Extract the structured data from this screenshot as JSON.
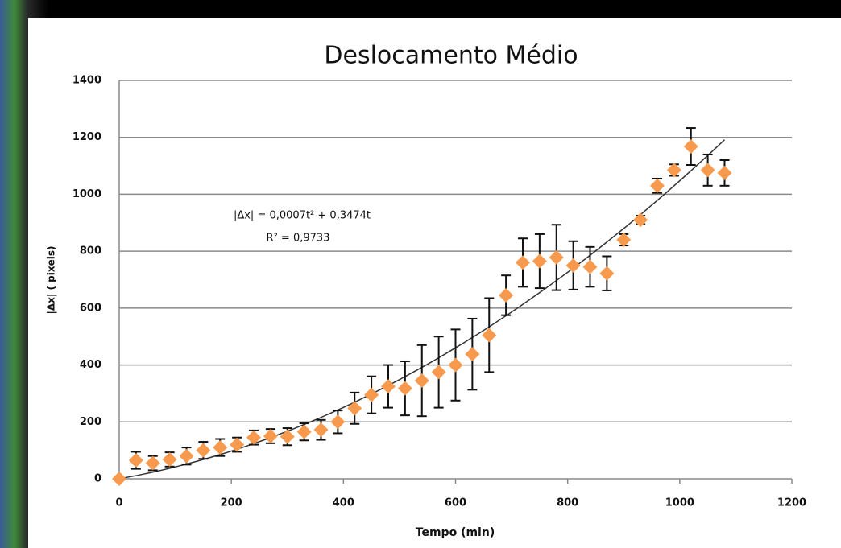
{
  "chart_data": {
    "type": "scatter",
    "title": "Deslocamento Médio",
    "x_label": "Tempo (min)",
    "y_label": "|Δx| ( pixels)",
    "x": [
      0,
      30,
      60,
      90,
      120,
      150,
      180,
      210,
      240,
      270,
      300,
      330,
      360,
      390,
      420,
      450,
      480,
      510,
      540,
      570,
      600,
      630,
      660,
      690,
      720,
      750,
      780,
      810,
      840,
      870,
      900,
      930,
      960,
      990,
      1020,
      1050,
      1080
    ],
    "series": [
      {
        "color": "#f79a4e",
        "values": [
          0,
          65,
          55,
          68,
          80,
          100,
          110,
          120,
          145,
          150,
          148,
          165,
          172,
          200,
          248,
          295,
          325,
          318,
          345,
          375,
          400,
          438,
          505,
          645,
          760,
          765,
          778,
          750,
          745,
          722,
          840,
          910,
          1030,
          1085,
          1168,
          1085,
          1075
        ],
        "errors": [
          0,
          30,
          25,
          25,
          30,
          30,
          30,
          25,
          25,
          25,
          30,
          30,
          35,
          40,
          55,
          65,
          75,
          95,
          125,
          125,
          125,
          125,
          130,
          70,
          85,
          95,
          115,
          85,
          70,
          60,
          20,
          15,
          25,
          20,
          65,
          55,
          45
        ]
      }
    ],
    "trendline": {
      "equation": "|Δx| = 0,0007t² + 0,3474t",
      "r_squared": "R² = 0,9733",
      "a": 0.0007,
      "b": 0.3474,
      "color": "#333333"
    },
    "xlim": [
      0,
      1200
    ],
    "xticks": [
      0,
      200,
      400,
      600,
      800,
      1000,
      1200
    ],
    "ylim": [
      0,
      1400
    ],
    "yticks": [
      0,
      200,
      400,
      600,
      800,
      1000,
      1200,
      1400
    ],
    "grid": true
  }
}
